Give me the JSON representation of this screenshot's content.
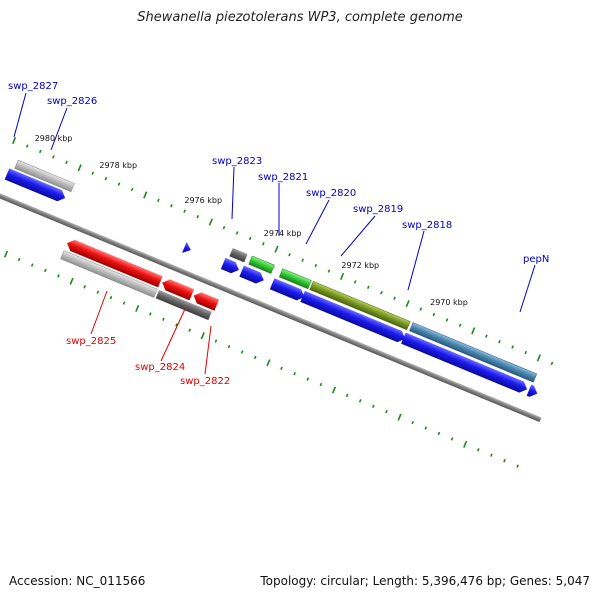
{
  "title": "Shewanella piezotolerans WP3, complete genome",
  "footer": {
    "accession": "Accession: NC_011566",
    "summary": "Topology: circular; Length: 5,396,476 bp; Genes: 5,047"
  },
  "colors": {
    "forward_label": "#0000cc",
    "reverse_label": "#dd0000",
    "backbone": "#8a8a8a",
    "tick": "#1a8a1a",
    "blue": "#1a1aee",
    "red": "#ee1111",
    "light_grey": "#bdbdbd",
    "dark_grey": "#666666",
    "green": "#33cc33",
    "olive": "#7a9a22",
    "steel_blue": "#4a86b0"
  },
  "kbp_labels": [
    "2980 kbp",
    "2978 kbp",
    "2976 kbp",
    "2974 kbp",
    "2972 kbp",
    "2970 kbp"
  ],
  "forward_labels": [
    "swp_2827",
    "swp_2826",
    "swp_2823",
    "swp_2821",
    "swp_2820",
    "swp_2819",
    "swp_2818",
    "pepN"
  ],
  "reverse_labels": [
    "swp_2825",
    "swp_2824",
    "swp_2822"
  ]
}
